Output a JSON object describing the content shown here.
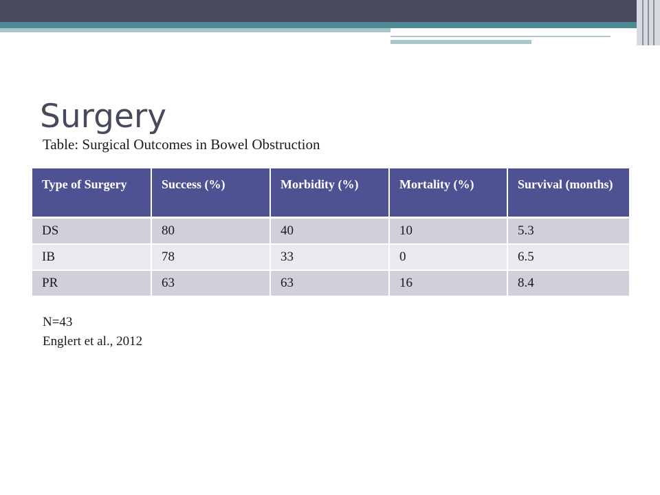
{
  "slide": {
    "title": "Surgery",
    "subtitle": "Table: Surgical Outcomes in Bowel Obstruction",
    "colors": {
      "header_dark": "#464a5c",
      "header_teal": "#4b8a94",
      "header_light": "#a9c6cb",
      "table_header": "#4e5292",
      "row_shade_a": "#cfd0db",
      "row_shade_b": "#e9e9ef",
      "title_text": "#464a5c"
    }
  },
  "table": {
    "headers": [
      "Type of Surgery",
      "Success (%)",
      "Morbidity (%)",
      "Mortality (%)",
      "Survival (months)"
    ],
    "rows": [
      [
        "DS",
        "80",
        "40",
        "10",
        "5.3"
      ],
      [
        "IB",
        "78",
        "33",
        "0",
        "6.5"
      ],
      [
        "PR",
        "63",
        "63",
        "16",
        "8.4"
      ]
    ]
  },
  "notes": {
    "sample_size": "N=43",
    "citation": "Englert et al., 2012"
  }
}
